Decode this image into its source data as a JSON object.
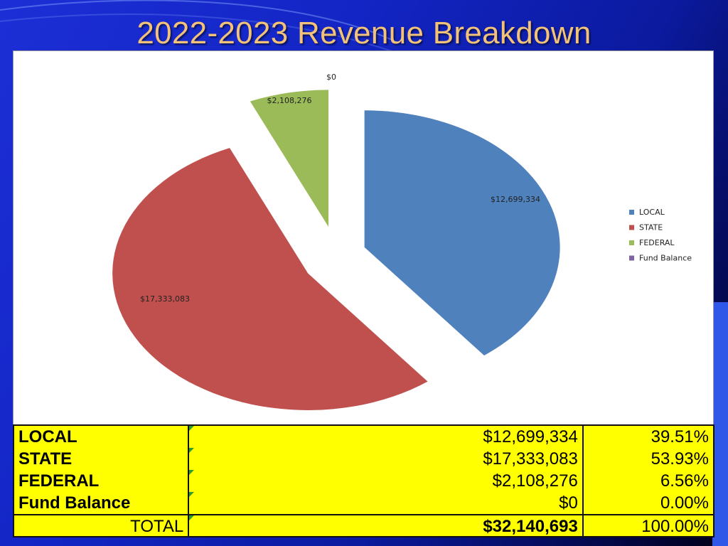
{
  "title": "2022-2023 Revenue Breakdown",
  "colors": {
    "local": "#4f81bd",
    "state": "#c0504d",
    "federal": "#9bbb59",
    "fund_balance": "#8064a2",
    "title": "#f2c27a",
    "table_bg": "#ffff00"
  },
  "chart_data": {
    "type": "pie",
    "exploded": true,
    "categories": [
      "LOCAL",
      "STATE",
      "FEDERAL",
      "Fund Balance"
    ],
    "values": [
      12699334,
      17333083,
      2108276,
      0
    ],
    "data_labels": [
      "$12,699,334",
      "$17,333,083",
      "$2,108,276",
      "$0"
    ],
    "legend": [
      "LOCAL",
      "STATE",
      "FEDERAL",
      "Fund Balance"
    ],
    "legend_position": "right"
  },
  "table": {
    "rows": [
      {
        "name": "LOCAL",
        "amount": "$12,699,334",
        "percent": "39.51%"
      },
      {
        "name": "STATE",
        "amount": "$17,333,083",
        "percent": "53.93%"
      },
      {
        "name": "FEDERAL",
        "amount": "$2,108,276",
        "percent": "6.56%"
      },
      {
        "name": "Fund Balance",
        "amount": "$0",
        "percent": "0.00%"
      }
    ],
    "total": {
      "label": "TOTAL",
      "amount": "$32,140,693",
      "percent": "100.00%"
    }
  }
}
